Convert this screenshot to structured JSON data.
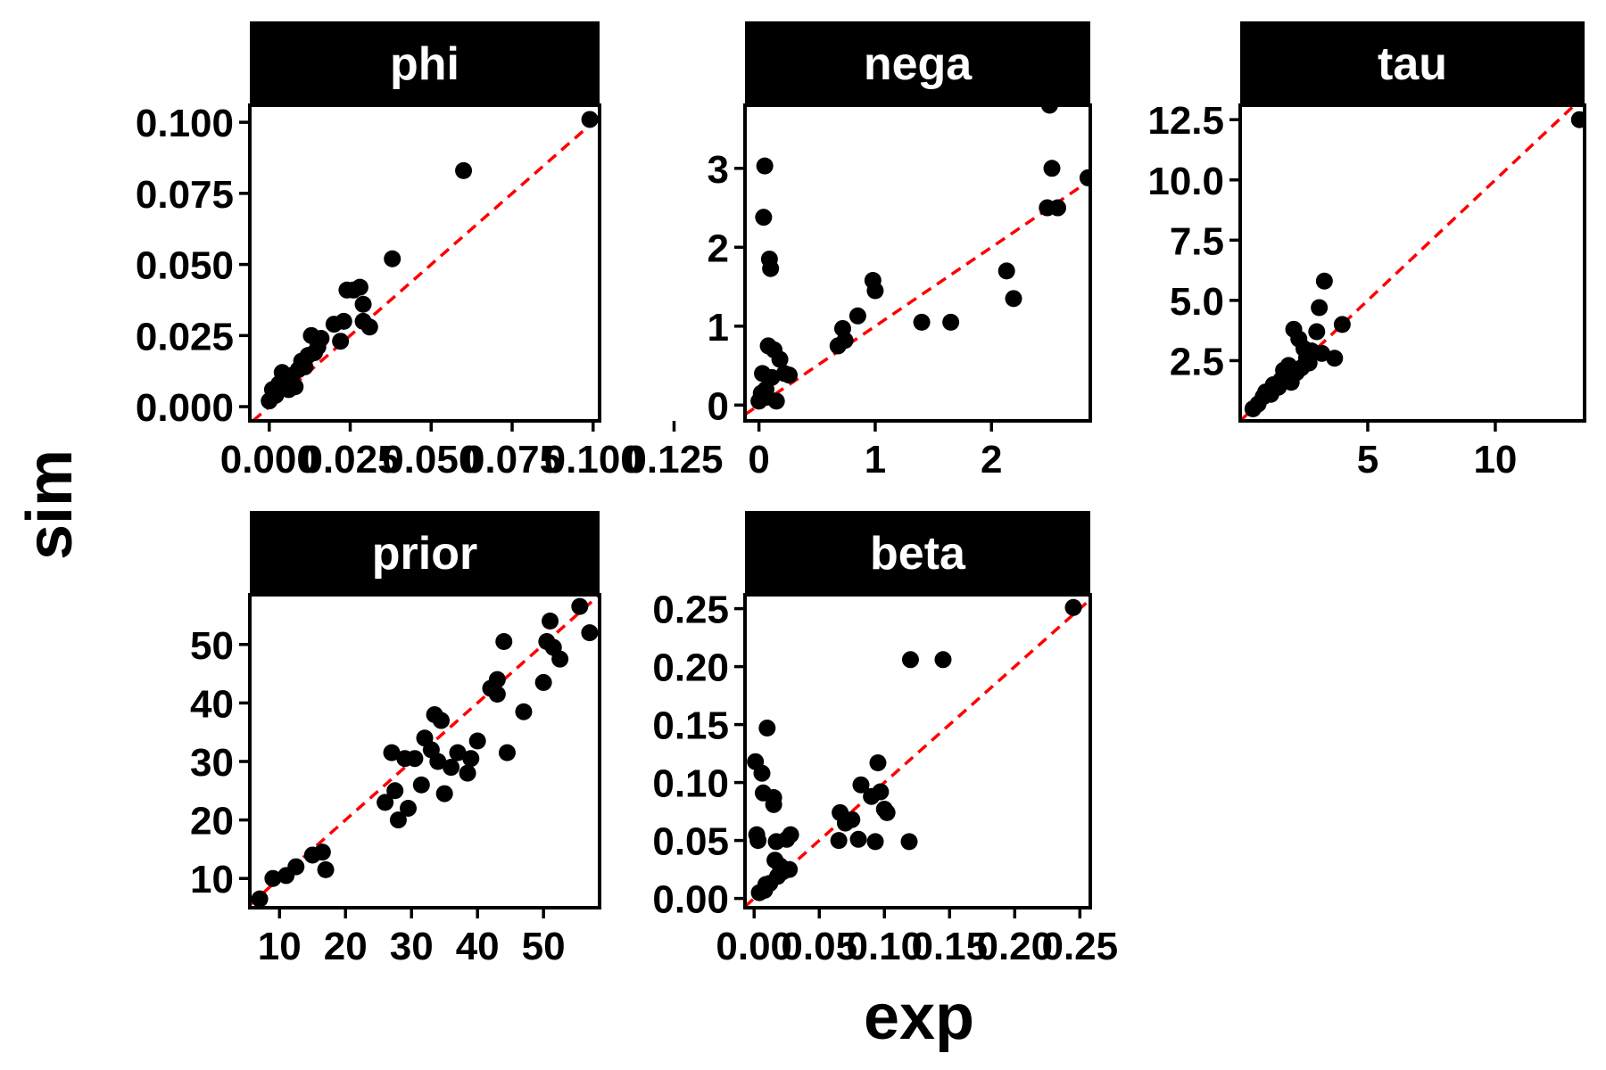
{
  "axis_titles": {
    "x": "exp",
    "y": "sim"
  },
  "colors": {
    "points": "#000000",
    "reference_line": "#ff0000",
    "strip_background": "#000000",
    "strip_text": "#ffffff"
  },
  "chart_data": [
    {
      "type": "scatter",
      "title": "phi",
      "xlim": [
        -0.006,
        0.102
      ],
      "ylim": [
        -0.005,
        0.106
      ],
      "x_ticks": [
        "0.000",
        "0.025",
        "0.050",
        "0.075",
        "0.100",
        "0.125"
      ],
      "x_tick_values": [
        0.0,
        0.025,
        0.05,
        0.075,
        0.1,
        0.125
      ],
      "y_ticks": [
        "0.000",
        "0.025",
        "0.050",
        "0.075",
        "0.100"
      ],
      "y_tick_values": [
        0.0,
        0.025,
        0.05,
        0.075,
        0.1
      ],
      "reference_line": "y = x",
      "points": [
        [
          0.0,
          0.002
        ],
        [
          0.001,
          0.006
        ],
        [
          0.002,
          0.004
        ],
        [
          0.003,
          0.008
        ],
        [
          0.004,
          0.012
        ],
        [
          0.005,
          0.009
        ],
        [
          0.006,
          0.006
        ],
        [
          0.007,
          0.011
        ],
        [
          0.008,
          0.007
        ],
        [
          0.009,
          0.013
        ],
        [
          0.01,
          0.016
        ],
        [
          0.011,
          0.014
        ],
        [
          0.012,
          0.018
        ],
        [
          0.013,
          0.025
        ],
        [
          0.014,
          0.019
        ],
        [
          0.015,
          0.021
        ],
        [
          0.016,
          0.024
        ],
        [
          0.02,
          0.029
        ],
        [
          0.022,
          0.023
        ],
        [
          0.023,
          0.03
        ],
        [
          0.024,
          0.041
        ],
        [
          0.026,
          0.041
        ],
        [
          0.028,
          0.042
        ],
        [
          0.029,
          0.036
        ],
        [
          0.029,
          0.03
        ],
        [
          0.031,
          0.028
        ],
        [
          0.038,
          0.052
        ],
        [
          0.06,
          0.083
        ],
        [
          0.099,
          0.101
        ]
      ]
    },
    {
      "type": "scatter",
      "title": "nega",
      "xlim": [
        -0.12,
        2.85
      ],
      "ylim": [
        -0.2,
        3.8
      ],
      "x_ticks": [
        "0",
        "1",
        "2"
      ],
      "x_tick_values": [
        0,
        1,
        2
      ],
      "y_ticks": [
        "0",
        "1",
        "2",
        "3"
      ],
      "y_tick_values": [
        0,
        1,
        2,
        3
      ],
      "reference_line": "y = x",
      "points": [
        [
          0.0,
          0.05
        ],
        [
          0.02,
          0.15
        ],
        [
          0.03,
          0.4
        ],
        [
          0.04,
          2.38
        ],
        [
          0.05,
          3.03
        ],
        [
          0.06,
          0.2
        ],
        [
          0.07,
          0.1
        ],
        [
          0.08,
          0.75
        ],
        [
          0.09,
          1.85
        ],
        [
          0.1,
          1.73
        ],
        [
          0.11,
          0.35
        ],
        [
          0.13,
          0.7
        ],
        [
          0.15,
          0.05
        ],
        [
          0.18,
          0.58
        ],
        [
          0.22,
          0.4
        ],
        [
          0.26,
          0.38
        ],
        [
          0.68,
          0.75
        ],
        [
          0.72,
          0.97
        ],
        [
          0.74,
          0.82
        ],
        [
          0.85,
          1.13
        ],
        [
          0.98,
          1.58
        ],
        [
          1.0,
          1.45
        ],
        [
          1.4,
          1.05
        ],
        [
          1.65,
          1.05
        ],
        [
          2.13,
          1.7
        ],
        [
          2.19,
          1.35
        ],
        [
          2.48,
          2.5
        ],
        [
          2.5,
          3.8
        ],
        [
          2.52,
          3.0
        ],
        [
          2.57,
          2.5
        ],
        [
          2.83,
          2.88
        ]
      ]
    },
    {
      "type": "scatter",
      "title": "tau",
      "xlim": [
        0.0,
        13.5
      ],
      "ylim": [
        0.0,
        13.1
      ],
      "x_ticks": [
        "5",
        "10"
      ],
      "x_tick_values": [
        5,
        10
      ],
      "y_ticks": [
        "2.5",
        "5.0",
        "7.5",
        "10.0",
        "12.5"
      ],
      "y_tick_values": [
        2.5,
        5.0,
        7.5,
        10.0,
        12.5
      ],
      "reference_line": "y = x",
      "points": [
        [
          0.5,
          0.5
        ],
        [
          0.7,
          0.7
        ],
        [
          0.9,
          1.0
        ],
        [
          1.0,
          1.2
        ],
        [
          1.2,
          1.1
        ],
        [
          1.3,
          1.5
        ],
        [
          1.5,
          1.4
        ],
        [
          1.6,
          1.7
        ],
        [
          1.7,
          2.1
        ],
        [
          1.8,
          1.9
        ],
        [
          1.9,
          2.3
        ],
        [
          2.0,
          1.6
        ],
        [
          2.1,
          3.8
        ],
        [
          2.2,
          2.0
        ],
        [
          2.3,
          3.4
        ],
        [
          2.4,
          2.2
        ],
        [
          2.5,
          3.0
        ],
        [
          2.6,
          2.6
        ],
        [
          2.7,
          2.4
        ],
        [
          2.8,
          2.9
        ],
        [
          3.0,
          3.7
        ],
        [
          3.1,
          4.7
        ],
        [
          3.2,
          2.8
        ],
        [
          3.3,
          5.8
        ],
        [
          3.7,
          2.6
        ],
        [
          4.0,
          4.0
        ],
        [
          13.3,
          12.5
        ]
      ]
    },
    {
      "type": "scatter",
      "title": "prior",
      "xlim": [
        5.5,
        58.5
      ],
      "ylim": [
        5.0,
        58.5
      ],
      "x_ticks": [
        "10",
        "20",
        "30",
        "40",
        "50"
      ],
      "x_tick_values": [
        10,
        20,
        30,
        40,
        50
      ],
      "y_ticks": [
        "10",
        "20",
        "30",
        "40",
        "50"
      ],
      "y_tick_values": [
        10,
        20,
        30,
        40,
        50
      ],
      "reference_line": "y = x",
      "points": [
        [
          7,
          6.5
        ],
        [
          9,
          10
        ],
        [
          11,
          10.5
        ],
        [
          12.5,
          12
        ],
        [
          15,
          14
        ],
        [
          16.5,
          14.5
        ],
        [
          17,
          11.5
        ],
        [
          26,
          23
        ],
        [
          27,
          31.5
        ],
        [
          27.5,
          25
        ],
        [
          28,
          20
        ],
        [
          29,
          30.5
        ],
        [
          29.5,
          22
        ],
        [
          30.5,
          30.5
        ],
        [
          31.5,
          26
        ],
        [
          32,
          34
        ],
        [
          33,
          32
        ],
        [
          33.5,
          38
        ],
        [
          34,
          30
        ],
        [
          34.5,
          37
        ],
        [
          35,
          24.5
        ],
        [
          36,
          29
        ],
        [
          37,
          31.5
        ],
        [
          38.5,
          28
        ],
        [
          39,
          30.5
        ],
        [
          40,
          33.5
        ],
        [
          42,
          42.5
        ],
        [
          43,
          41.5
        ],
        [
          43,
          44
        ],
        [
          44,
          50.5
        ],
        [
          44.5,
          31.5
        ],
        [
          47,
          38.5
        ],
        [
          50,
          43.5
        ],
        [
          50.5,
          50.5
        ],
        [
          51,
          54
        ],
        [
          51.5,
          49.5
        ],
        [
          52.5,
          47.5
        ],
        [
          55.5,
          56.5
        ],
        [
          57,
          52
        ]
      ]
    },
    {
      "type": "scatter",
      "title": "beta",
      "xlim": [
        -0.007,
        0.258
      ],
      "ylim": [
        -0.008,
        0.262
      ],
      "x_ticks": [
        "0.00",
        "0.05",
        "0.10",
        "0.15",
        "0.20",
        "0.25"
      ],
      "x_tick_values": [
        0.0,
        0.05,
        0.1,
        0.15,
        0.2,
        0.25
      ],
      "y_ticks": [
        "0.00",
        "0.05",
        "0.10",
        "0.15",
        "0.20",
        "0.25"
      ],
      "y_tick_values": [
        0.0,
        0.05,
        0.1,
        0.15,
        0.2,
        0.25
      ],
      "reference_line": "y = x",
      "points": [
        [
          0.001,
          0.118
        ],
        [
          0.002,
          0.055
        ],
        [
          0.003,
          0.05
        ],
        [
          0.004,
          0.005
        ],
        [
          0.006,
          0.108
        ],
        [
          0.007,
          0.091
        ],
        [
          0.008,
          0.007
        ],
        [
          0.009,
          0.012
        ],
        [
          0.01,
          0.147
        ],
        [
          0.012,
          0.013
        ],
        [
          0.015,
          0.087
        ],
        [
          0.015,
          0.081
        ],
        [
          0.016,
          0.033
        ],
        [
          0.017,
          0.049
        ],
        [
          0.018,
          0.019
        ],
        [
          0.02,
          0.028
        ],
        [
          0.022,
          0.023
        ],
        [
          0.025,
          0.051
        ],
        [
          0.027,
          0.025
        ],
        [
          0.028,
          0.055
        ],
        [
          0.065,
          0.05
        ],
        [
          0.066,
          0.074
        ],
        [
          0.07,
          0.065
        ],
        [
          0.075,
          0.068
        ],
        [
          0.08,
          0.051
        ],
        [
          0.082,
          0.098
        ],
        [
          0.09,
          0.088
        ],
        [
          0.093,
          0.049
        ],
        [
          0.095,
          0.117
        ],
        [
          0.097,
          0.092
        ],
        [
          0.1,
          0.077
        ],
        [
          0.102,
          0.074
        ],
        [
          0.119,
          0.049
        ],
        [
          0.12,
          0.206
        ],
        [
          0.145,
          0.206
        ],
        [
          0.245,
          0.251
        ]
      ]
    }
  ]
}
